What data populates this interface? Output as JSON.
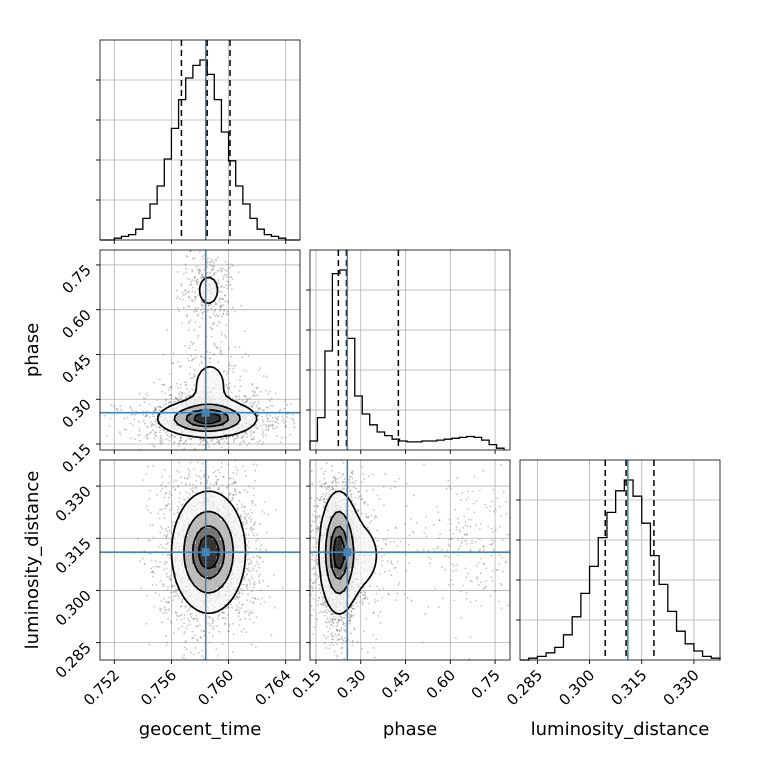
{
  "chart_data": {
    "type": "corner",
    "parameters": [
      "geocent_time",
      "phase",
      "luminosity_distance"
    ],
    "truths": {
      "geocent_time": 0.7584,
      "phase": 0.255,
      "luminosity_distance": 0.311
    },
    "colors": {
      "truth": "#4682b4",
      "hist": "#000000",
      "grid": "#b0b0b0",
      "points": "#555555"
    },
    "grid": true,
    "x_tick_labels": {
      "geocent_time": [
        "0.752",
        "0.756",
        "0.760",
        "0.764"
      ],
      "phase": [
        "0.15",
        "0.30",
        "0.45",
        "0.60",
        "0.75"
      ],
      "luminosity_distance": [
        "0.285",
        "0.300",
        "0.315",
        "0.330"
      ]
    },
    "y_tick_labels": {
      "phase": [
        "0.15",
        "0.30",
        "0.45",
        "0.60",
        "0.75"
      ],
      "luminosity_distance": [
        "0.285",
        "0.300",
        "0.315",
        "0.330"
      ]
    },
    "x_axis_labels": [
      "geocent_time",
      "phase",
      "luminosity_distance"
    ],
    "y_axis_labels": [
      "phase",
      "luminosity_distance"
    ],
    "marginals": [
      {
        "parameter": "geocent_time",
        "bin_edges": [
          0.751,
          0.7515,
          0.752,
          0.7525,
          0.753,
          0.7535,
          0.754,
          0.7545,
          0.755,
          0.7555,
          0.756,
          0.7565,
          0.757,
          0.7575,
          0.758,
          0.7585,
          0.759,
          0.7595,
          0.76,
          0.7605,
          0.761,
          0.7615,
          0.762,
          0.7625,
          0.763,
          0.7635,
          0.764,
          0.7645,
          0.765
        ],
        "counts": [
          0,
          0,
          0.01,
          0.02,
          0.03,
          0.06,
          0.12,
          0.2,
          0.3,
          0.45,
          0.62,
          0.78,
          0.9,
          0.97,
          1.0,
          0.92,
          0.78,
          0.6,
          0.44,
          0.3,
          0.2,
          0.12,
          0.06,
          0.03,
          0.02,
          0.01,
          0,
          0
        ],
        "quantiles": [
          0.7567,
          0.7585,
          0.7601
        ]
      },
      {
        "parameter": "phase",
        "bin_edges": [
          0.13,
          0.155,
          0.18,
          0.205,
          0.23,
          0.255,
          0.28,
          0.305,
          0.33,
          0.355,
          0.38,
          0.405,
          0.43,
          0.455,
          0.48,
          0.505,
          0.53,
          0.555,
          0.58,
          0.605,
          0.63,
          0.655,
          0.68,
          0.705,
          0.73,
          0.755,
          0.78
        ],
        "counts": [
          0.05,
          0.18,
          0.55,
          0.98,
          1.0,
          0.62,
          0.3,
          0.2,
          0.14,
          0.1,
          0.08,
          0.06,
          0.05,
          0.045,
          0.045,
          0.05,
          0.05,
          0.055,
          0.06,
          0.065,
          0.07,
          0.075,
          0.07,
          0.055,
          0.03,
          0.01
        ],
        "quantiles": [
          0.225,
          0.252,
          0.426
        ]
      },
      {
        "parameter": "luminosity_distance",
        "bin_edges": [
          0.28,
          0.2825,
          0.285,
          0.2875,
          0.29,
          0.2925,
          0.295,
          0.2975,
          0.3,
          0.3025,
          0.305,
          0.3075,
          0.31,
          0.3125,
          0.315,
          0.3175,
          0.32,
          0.3225,
          0.325,
          0.3275,
          0.33,
          0.3325,
          0.335,
          0.3375
        ],
        "counts": [
          0,
          0.01,
          0.02,
          0.04,
          0.07,
          0.14,
          0.24,
          0.37,
          0.52,
          0.68,
          0.82,
          0.94,
          1.0,
          0.91,
          0.76,
          0.58,
          0.42,
          0.27,
          0.16,
          0.09,
          0.05,
          0.02,
          0.01
        ],
        "quantiles": [
          0.3045,
          0.3105,
          0.3185
        ]
      }
    ],
    "ranges": {
      "geocent_time": [
        0.751,
        0.765
      ],
      "phase": [
        0.13,
        0.8
      ],
      "luminosity_distance": [
        0.28,
        0.3375
      ]
    },
    "ticks": {
      "geocent_time": [
        0.752,
        0.756,
        0.76,
        0.764
      ],
      "phase": [
        0.15,
        0.3,
        0.45,
        0.6,
        0.75
      ],
      "luminosity_distance": [
        0.285,
        0.3,
        0.315,
        0.33
      ]
    },
    "contour_levels": [
      "0.12",
      "0.39",
      "0.68",
      "0.86"
    ],
    "joint_densities": [
      {
        "x": "geocent_time",
        "y": "phase",
        "modes": [
          {
            "mx": 0.7585,
            "my": 0.235,
            "sx": 0.0017,
            "sy": 0.03,
            "w": 1.0
          },
          {
            "mx": 0.7587,
            "my": 0.345,
            "sx": 0.0011,
            "sy": 0.075,
            "w": 0.18
          },
          {
            "mx": 0.7586,
            "my": 0.665,
            "sx": 0.00065,
            "sy": 0.045,
            "w": 0.2
          }
        ]
      },
      {
        "x": "geocent_time",
        "y": "luminosity_distance",
        "modes": [
          {
            "mx": 0.7586,
            "my": 0.311,
            "sx": 0.00125,
            "sy": 0.0085,
            "w": 1.0
          }
        ]
      },
      {
        "x": "phase",
        "y": "luminosity_distance",
        "modes": [
          {
            "mx": 0.225,
            "my": 0.311,
            "sx": 0.03,
            "sy": 0.0085,
            "w": 1.0
          },
          {
            "mx": 0.29,
            "my": 0.31,
            "sx": 0.07,
            "sy": 0.009,
            "w": 0.2
          },
          {
            "mx": 0.675,
            "my": 0.312,
            "sx": 0.065,
            "sy": 0.0078,
            "w": 0.13
          }
        ]
      }
    ]
  }
}
